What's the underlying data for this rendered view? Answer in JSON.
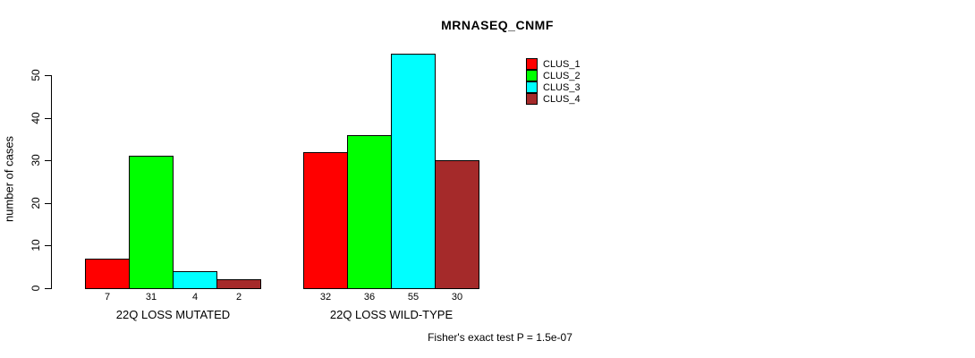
{
  "chart_data": {
    "type": "bar",
    "title": "MRNASEQ_CNMF",
    "ylabel": "number of cases",
    "xlabel": "",
    "categories": [
      "22Q LOSS MUTATED",
      "22Q LOSS WILD-TYPE"
    ],
    "series": [
      {
        "name": "CLUS_1",
        "color": "#ff0000",
        "values": [
          7,
          32
        ]
      },
      {
        "name": "CLUS_2",
        "color": "#00ff00",
        "values": [
          31,
          36
        ]
      },
      {
        "name": "CLUS_3",
        "color": "#00ffff",
        "values": [
          4,
          55
        ]
      },
      {
        "name": "CLUS_4",
        "color": "#a52a2a",
        "values": [
          2,
          30
        ]
      }
    ],
    "ylim": [
      0,
      55
    ],
    "yticks": [
      0,
      10,
      20,
      30,
      40,
      50
    ],
    "grid": false,
    "legend_position": "top-right",
    "bar_value_labels": true,
    "annotation": "Fisher's exact test P = 1.5e-07"
  }
}
